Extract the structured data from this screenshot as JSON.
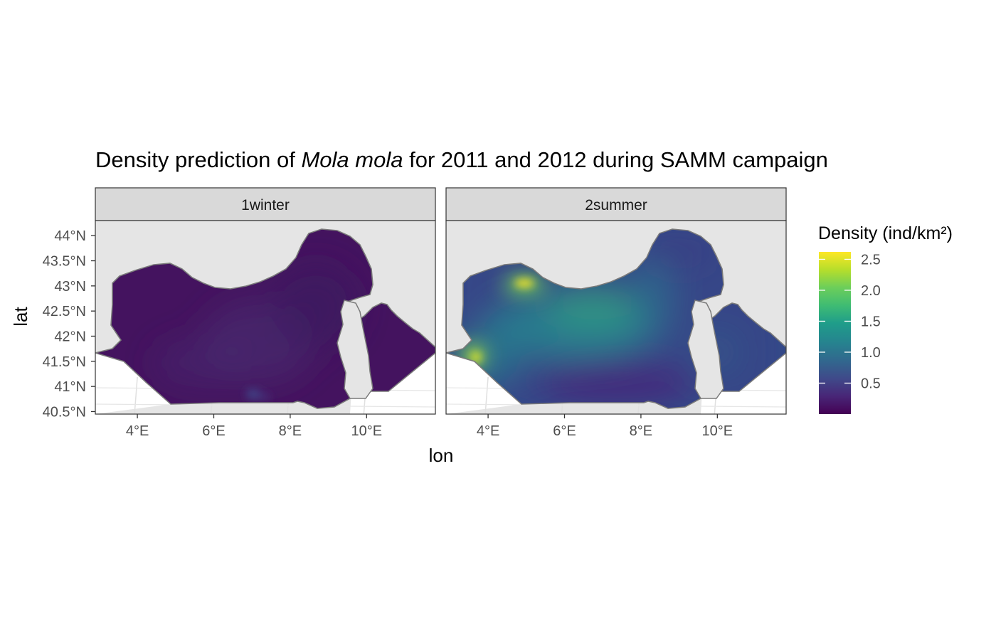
{
  "title": {
    "prefix": "Density prediction of ",
    "species": "Mola mola",
    "suffix": " for 2011 and 2012 during SAMM campaign"
  },
  "axes": {
    "xlabel": "lon",
    "ylabel": "lat",
    "xticks": [
      {
        "value": 4,
        "label": "4°E"
      },
      {
        "value": 6,
        "label": "6°E"
      },
      {
        "value": 8,
        "label": "8°E"
      },
      {
        "value": 10,
        "label": "10°E"
      }
    ],
    "yticks": [
      {
        "value": 40.5,
        "label": "40.5°N"
      },
      {
        "value": 41,
        "label": "41°N"
      },
      {
        "value": 41.5,
        "label": "41.5°N"
      },
      {
        "value": 42,
        "label": "42°N"
      },
      {
        "value": 42.5,
        "label": "42.5°N"
      },
      {
        "value": 43,
        "label": "43°N"
      },
      {
        "value": 43.5,
        "label": "43.5°N"
      },
      {
        "value": 44,
        "label": "44°N"
      }
    ],
    "xlim": [
      2.9,
      11.8
    ],
    "ylim": [
      40.45,
      44.3
    ]
  },
  "panels": [
    {
      "label": "1winter",
      "base_color": "#44135f"
    },
    {
      "label": "2summer",
      "base_color": "#2f4b8a"
    }
  ],
  "legend": {
    "title": "Density (ind/km²)",
    "ticks": [
      {
        "value": 0.5,
        "label": "0.5"
      },
      {
        "value": 1.0,
        "label": "1.0"
      },
      {
        "value": 1.5,
        "label": "1.5"
      },
      {
        "value": 2.0,
        "label": "2.0"
      },
      {
        "value": 2.5,
        "label": "2.5"
      }
    ],
    "range": [
      0.0,
      2.62
    ],
    "colors": [
      "#440154",
      "#482677",
      "#3f4a8a",
      "#31688e",
      "#26838f",
      "#1f9d8a",
      "#3fbc73",
      "#6cce5a",
      "#b6de2b",
      "#fde725"
    ]
  },
  "colors": {
    "panel_background": "#e5e5e5",
    "strip_background": "#d9d9d9",
    "coastline": "#7a7a7a",
    "land_outside": "#ffffff"
  }
}
